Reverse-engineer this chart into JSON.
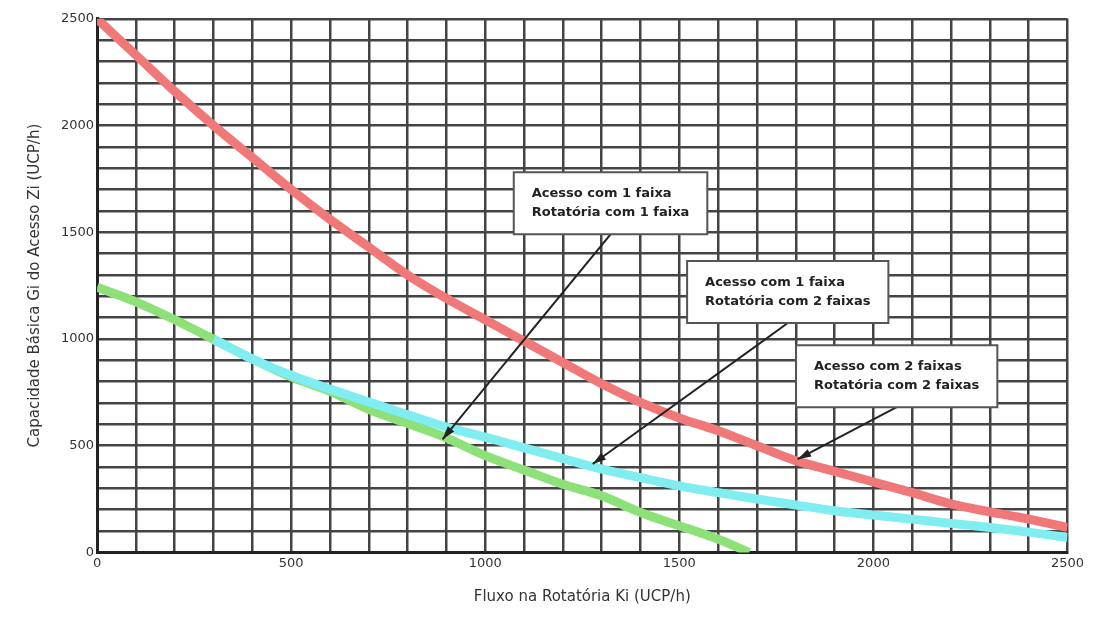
{
  "chart_data": {
    "type": "line",
    "xlabel": "Fluxo na Rotatória Ki (UCP/h)",
    "ylabel": "Capacidade Básica Gi do Acesso Zi (UCP/h)",
    "xlim": [
      0,
      2500
    ],
    "ylim": [
      0,
      2500
    ],
    "xticks": [
      0,
      {
        "value": 100,
        "label": null
      },
      {
        "value": 200,
        "label": null
      },
      {
        "value": 300,
        "label": null
      },
      {
        "value": 400,
        "label": null
      },
      500,
      {
        "value": 600,
        "label": null
      },
      {
        "value": 700,
        "label": null
      },
      {
        "value": 800,
        "label": null
      },
      {
        "value": 900,
        "label": null
      },
      1000,
      {
        "value": 1100,
        "label": null
      },
      {
        "value": 1200,
        "label": null
      },
      {
        "value": 1300,
        "label": null
      },
      {
        "value": 1400,
        "label": null
      },
      1500,
      {
        "value": 1600,
        "label": null
      },
      {
        "value": 1700,
        "label": null
      },
      {
        "value": 1800,
        "label": null
      },
      {
        "value": 1900,
        "label": null
      },
      2000,
      {
        "value": 2100,
        "label": null
      },
      {
        "value": 2200,
        "label": null
      },
      {
        "value": 2300,
        "label": null
      },
      {
        "value": 2400,
        "label": null
      },
      2500
    ],
    "yticks": [
      0,
      {
        "value": 100,
        "label": null
      },
      {
        "value": 200,
        "label": null
      },
      {
        "value": 300,
        "label": null
      },
      {
        "value": 400,
        "label": null
      },
      500,
      {
        "value": 600,
        "label": null
      },
      {
        "value": 700,
        "label": null
      },
      {
        "value": 800,
        "label": null
      },
      {
        "value": 900,
        "label": null
      },
      1000,
      {
        "value": 1100,
        "label": null
      },
      {
        "value": 1200,
        "label": null
      },
      {
        "value": 1300,
        "label": null
      },
      {
        "value": 1400,
        "label": null
      },
      1500,
      {
        "value": 1600,
        "label": null
      },
      {
        "value": 1700,
        "label": null
      },
      {
        "value": 1800,
        "label": null
      },
      {
        "value": 1900,
        "label": null
      },
      2000,
      {
        "value": 2100,
        "label": null
      },
      {
        "value": 2200,
        "label": null
      },
      {
        "value": 2300,
        "label": null
      },
      {
        "value": 2400,
        "label": null
      },
      2500
    ],
    "grid": true,
    "legend": false,
    "marker": "none",
    "series": [
      {
        "color": "#f07878",
        "x": [
          0,
          100,
          200,
          300,
          400,
          500,
          600,
          700,
          800,
          900,
          1000,
          1100,
          1200,
          1300,
          1400,
          1500,
          1600,
          1700,
          1800,
          1900,
          2000,
          2100,
          2200,
          2300,
          2400,
          2500
        ],
        "values": [
          2500,
          2330,
          2160,
          2000,
          1850,
          1700,
          1560,
          1430,
          1300,
          1190,
          1090,
          990,
          890,
          790,
          703,
          630,
          570,
          500,
          430,
          380,
          330,
          280,
          227,
          190,
          156,
          117
        ]
      },
      {
        "color": "#80eef0",
        "x": [
          300,
          400,
          500,
          600,
          700,
          800,
          900,
          1000,
          1100,
          1200,
          1300,
          1400,
          1500,
          1600,
          1700,
          1800,
          1900,
          2000,
          2100,
          2200,
          2300,
          2400,
          2500
        ],
        "values": [
          998,
          906,
          830,
          765,
          705,
          645,
          587,
          540,
          490,
          440,
          390,
          350,
          312,
          280,
          250,
          222,
          195,
          175,
          156,
          136,
          117,
          95,
          70
        ]
      },
      {
        "color": "#8ee078",
        "x": [
          0,
          100,
          200,
          300,
          400,
          500,
          600,
          700,
          800,
          900,
          1000,
          1100,
          1200,
          1300,
          1400,
          1500,
          1600,
          1680
        ],
        "values": [
          1242,
          1174,
          1090,
          998,
          906,
          822,
          755,
          670,
          604,
          537,
          453,
          386,
          319,
          265,
          187,
          125,
          62,
          0
        ]
      }
    ],
    "annotations": [
      {
        "text": "Acesso com 1 faixa\nRotatória com 1 faixa",
        "x": 890,
        "y": 530
      },
      {
        "text": "Acesso com 1 faixa\nRotatória com 2 faixas",
        "x": 1277,
        "y": 414
      },
      {
        "text": "Acesso com 2 faixas\nRotatória com 2 faixas",
        "x": 1805,
        "y": 437
      }
    ]
  }
}
